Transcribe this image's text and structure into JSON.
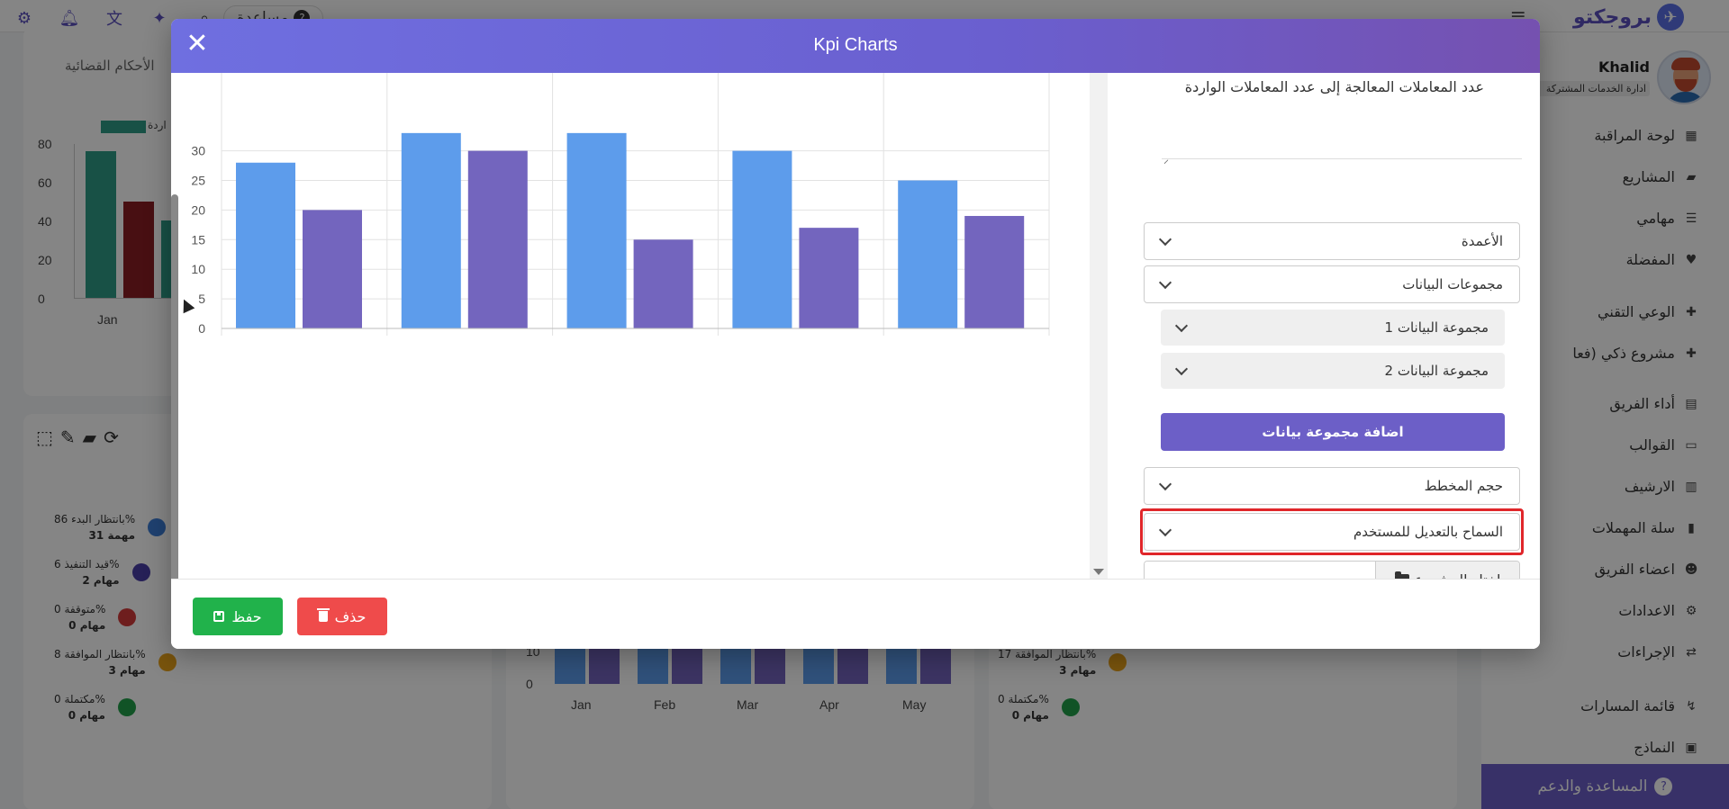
{
  "topbar": {
    "brand": "بروجكتو",
    "help_label": "مساعدة",
    "help_q": "?"
  },
  "sidebar": {
    "user_name": "Khalid",
    "user_role": "ادارة الخدمات المشتركة",
    "items": [
      {
        "label": "لوحة المراقبة",
        "icon": "dashboard-icon"
      },
      {
        "label": "المشاريع",
        "icon": "folder-icon"
      },
      {
        "label": "مهامي",
        "icon": "list-icon"
      },
      {
        "label": "المفضلة",
        "icon": "heart-icon"
      },
      {
        "label": "الوعي التقني",
        "icon": "puzzle-icon"
      },
      {
        "label": "مشروع ذكي (فعا",
        "icon": "puzzle-icon"
      },
      {
        "label": "أداء الفريق",
        "icon": "chart-icon"
      },
      {
        "label": "القوالب",
        "icon": "template-icon"
      },
      {
        "label": "الارشيف",
        "icon": "archive-icon"
      },
      {
        "label": "سلة المهملات",
        "icon": "trash-icon"
      },
      {
        "label": "اعضاء الفريق",
        "icon": "users-icon"
      },
      {
        "label": "الاعدادات",
        "icon": "settings-icon"
      },
      {
        "label": "الإجراءات",
        "icon": "procedure-icon"
      },
      {
        "label": "قائمة المسارات",
        "icon": "route-icon"
      },
      {
        "label": "النماذج",
        "icon": "form-icon"
      }
    ],
    "support_label": "المساعدة والدعم"
  },
  "background": {
    "card1_title": "الأحكام القضائية",
    "card1_legend": "اردة",
    "card1_y_ticks": [
      "80",
      "60",
      "40",
      "20",
      "0"
    ],
    "card1_x_label": "Jan",
    "card1_values": [
      76,
      50,
      40
    ],
    "status_list": [
      {
        "title": "بانتظار البدء 86%",
        "count": "31 مهمة",
        "color": "#3d7dd6"
      },
      {
        "title": "قيد التنفيذ 6%",
        "count": "2 مهام",
        "color": "#4a3ea8"
      },
      {
        "title": "متوقفة 0%",
        "count": "0 مهام",
        "color": "#d33b3b"
      },
      {
        "title": "بانتظار الموافقة 8%",
        "count": "3 مهام",
        "color": "#e8a21a"
      },
      {
        "title": "مكتملة 0%",
        "count": "0 مهام",
        "color": "#21a04a"
      }
    ],
    "status_list_right": [
      {
        "title": "بانتظار الموافقة 17%",
        "count": "3 مهام",
        "color": "#e8a21a"
      },
      {
        "title": "مكتملة 0%",
        "count": "0 مهام",
        "color": "#21a04a"
      }
    ],
    "mid_chart_months": [
      "Jan",
      "Feb",
      "Mar",
      "Apr",
      "May"
    ],
    "mid_chart_ticks": [
      "10",
      "0"
    ]
  },
  "modal": {
    "title": "Kpi Charts",
    "close_label": "✕",
    "kpi_description": "عدد المعاملات المعالجة إلى عدد المعاملات الواردة",
    "fields": {
      "columns": "الأعمدة",
      "datasets": "مجموعات البيانات",
      "dataset1": "مجموعة البيانات 1",
      "dataset2": "مجموعة البيانات 2",
      "add_dataset": "اضافة مجموعة بيانات",
      "chart_size": "حجم المخطط",
      "allow_user_edit": "السماح بالتعديل للمستخدم",
      "choose_project": "اختار المشروع"
    },
    "footer": {
      "save": "حفظ",
      "delete": "حذف"
    }
  },
  "colors": {
    "series1": "#5d9ceb",
    "series2": "#7365be",
    "accent": "#6c5fc7",
    "save": "#21b24b",
    "delete": "#ef4b4b"
  },
  "chart_data": {
    "type": "bar",
    "categories": [
      "Jan",
      "Feb",
      "Mar",
      "Apr",
      "May"
    ],
    "series": [
      {
        "values": [
          28,
          33,
          33,
          30,
          25
        ]
      },
      {
        "values": [
          20,
          30,
          15,
          17,
          19
        ]
      }
    ],
    "y_ticks": [
      0,
      5,
      10,
      15,
      20,
      25,
      30
    ],
    "ylim": [
      0,
      33
    ],
    "grid": true
  }
}
